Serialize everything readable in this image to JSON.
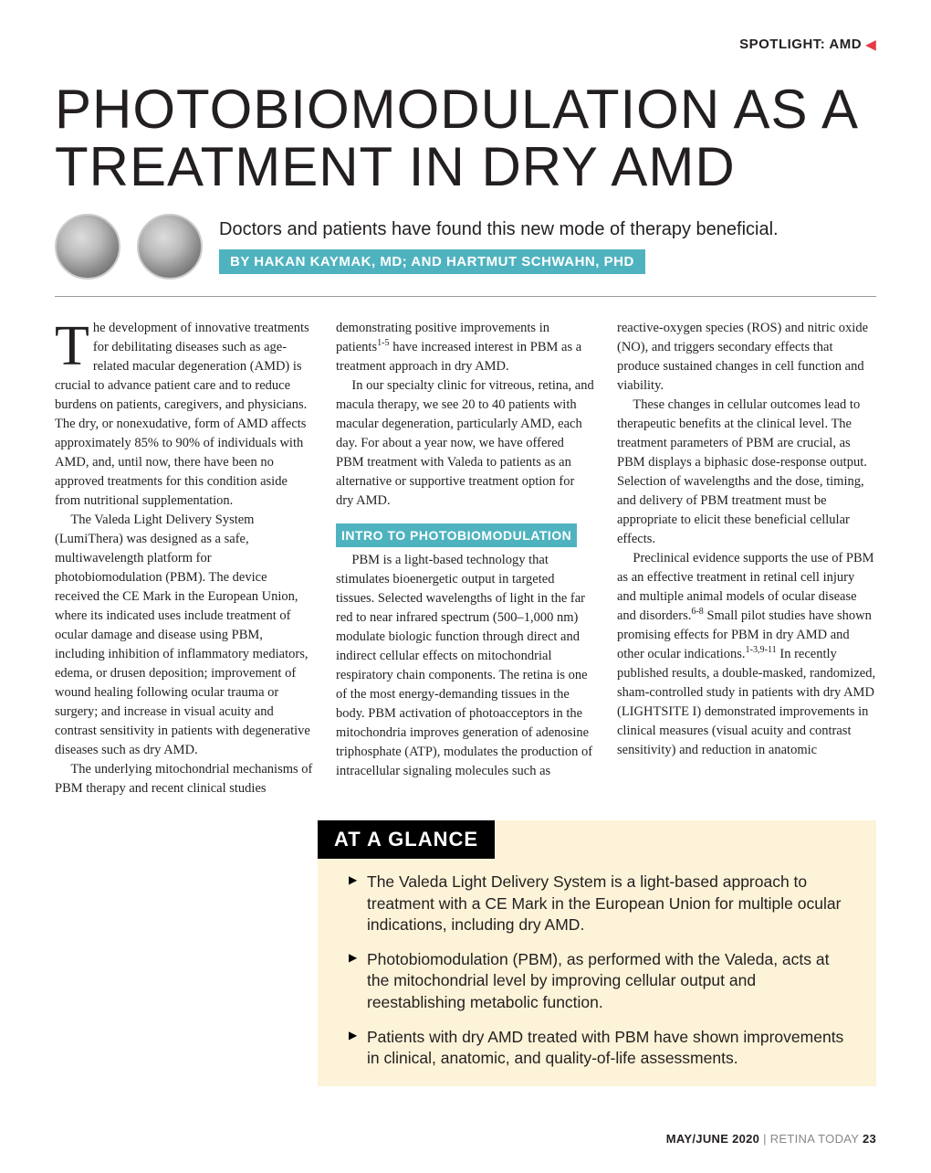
{
  "header": {
    "spotlight_label": "SPOTLIGHT: AMD",
    "arrow_glyph": "◀"
  },
  "article": {
    "title": "PHOTOBIOMODULATION AS A TREATMENT IN DRY AMD",
    "subtitle": "Doctors and patients have found this new mode of therapy beneficial.",
    "byline": "BY HAKAN KAYMAK, MD; AND HARTMUT SCHWAHN, PHD",
    "dropcap": "T",
    "paragraphs": {
      "p1": "he development of innovative treatments for debilitating diseases such as age-related macular degeneration (AMD) is crucial to advance patient care and to reduce burdens on patients, caregivers, and physicians. The dry, or nonexudative, form of AMD affects approximately 85% to 90% of individuals with AMD, and, until now, there have been no approved treatments for this condition aside from nutritional supplementation.",
      "p2": "The Valeda Light Delivery System (LumiThera) was designed as a safe, multiwavelength platform for photobiomodulation (PBM). The device received the CE Mark in the European Union, where its indicated uses include treatment of ocular damage and disease using PBM, including inhibition of inflammatory mediators, edema, or drusen deposition; improvement of wound healing following ocular trauma or surgery; and increase in visual acuity and contrast sensitivity in patients with degenerative diseases such as dry AMD.",
      "p3a": "The underlying mitochondrial mechanisms of PBM therapy and recent clinical studies demonstrating positive improvements in patients",
      "p3_ref": "1-5",
      "p3b": " have increased interest in PBM as a treatment approach in dry AMD.",
      "p4": "In our specialty clinic for vitreous, retina, and macula therapy, we see 20 to 40 patients with macular degeneration, particularly AMD, each day. For about a year now, we have offered PBM treatment with Valeda to patients as an alternative or supportive treatment option for dry AMD.",
      "section_head": "INTRO TO PHOTOBIOMODULATION",
      "p5": "PBM is a light-based technology that stimulates bioenergetic output in targeted tissues. Selected wavelengths of light in the far red to near infrared spectrum (500–1,000 nm) modulate biologic function through direct and indirect cellular effects on mitochondrial respiratory chain components. The retina is one of the most energy-demanding tissues in the body. PBM activation of photoacceptors in the mitochondria improves generation of adenosine triphosphate (ATP), modulates the production of intracellular signaling molecules such as reactive-oxygen species (ROS) and nitric oxide (NO), and triggers secondary effects that produce sustained changes in cell function and viability.",
      "p6": "These changes in cellular outcomes lead to therapeutic benefits at the clinical level. The treatment parameters of PBM are crucial, as PBM displays a biphasic dose-response output. Selection of wavelengths and the dose, timing, and delivery of PBM treatment must be appropriate to elicit these beneficial cellular effects.",
      "p7a": "Preclinical evidence supports the use of PBM as an effective treatment in retinal cell injury and multiple animal models of ocular disease and disorders.",
      "p7_ref1": "6-8",
      "p7b": " Small pilot studies have shown promising effects for PBM in dry AMD and other ocular indications.",
      "p7_ref2": "1-3,9-11",
      "p7c": " In recently published results, a double-masked, randomized, sham-controlled study in patients with dry AMD (LIGHTSITE I) demonstrated improvements in clinical measures (visual acuity and contrast sensitivity) and reduction in anatomic"
    }
  },
  "glance": {
    "title": "AT A GLANCE",
    "items": [
      "The Valeda Light Delivery System is a light-based approach to treatment with a CE Mark in the European Union for multiple ocular indications, including dry AMD.",
      "Photobiomodulation (PBM), as performed with the Valeda, acts at the mitochondrial level by improving cellular output and reestablishing metabolic function.",
      "Patients with dry AMD treated with PBM have shown improvements in clinical, anatomic, and quality-of-life assessments."
    ]
  },
  "footer": {
    "issue": "MAY/JUNE 2020",
    "publication": "RETINA TODAY",
    "page": "23"
  },
  "colors": {
    "accent_teal": "#4fb3bf",
    "accent_red": "#e63946",
    "glance_bg": "#fdf3d8",
    "text": "#231f20"
  }
}
